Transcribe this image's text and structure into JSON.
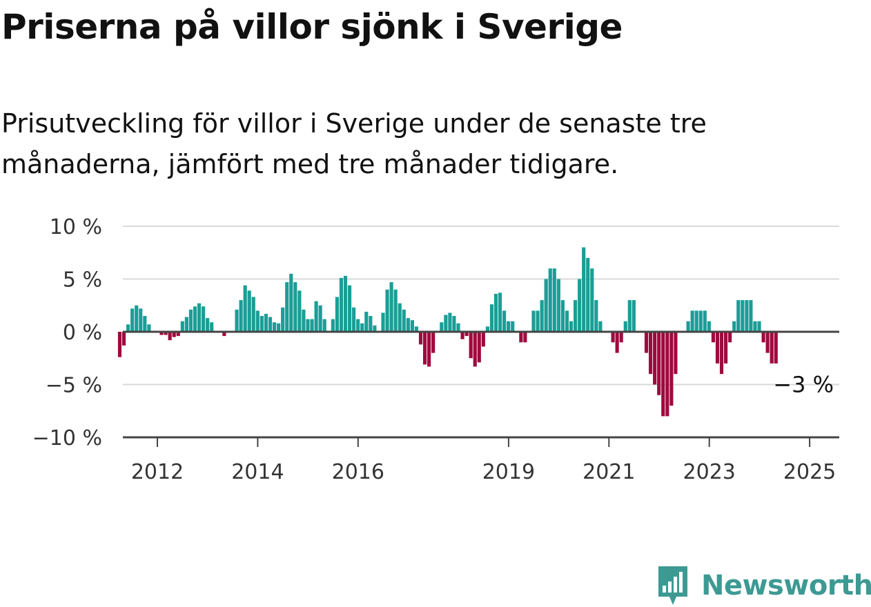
{
  "title": "Priserna på villor sjönk i Sverige",
  "subtitle": {
    "line1": "Prisutveckling för villor i Sverige under de senaste tre",
    "line2": "månaderna, jämfört med tre månader tidigare."
  },
  "brand": {
    "name": "Newsworthy",
    "color": "#3d9a93"
  },
  "chart_data": {
    "type": "bar",
    "ylim": [
      -10,
      10
    ],
    "y_ticks": [
      10,
      5,
      0,
      -5,
      -10
    ],
    "y_tick_labels": [
      "10 %",
      "5 %",
      "0 %",
      "−5 %",
      "−10 %"
    ],
    "x_ticks": [
      2012,
      2014,
      2016,
      2019,
      2021,
      2023,
      2025
    ],
    "x_tick_labels": [
      "2012",
      "2014",
      "2016",
      "2019",
      "2021",
      "2023",
      "2025"
    ],
    "grid": true,
    "colors": {
      "positive": "#1a9e97",
      "negative": "#9e0a3e",
      "grid": "#d9d9d9",
      "axis": "#444444"
    },
    "annotation": {
      "text": "−3 %",
      "value": -3
    },
    "x_start": 2011.25,
    "x_step": 0.0833,
    "values": [
      -2.4,
      -1.3,
      0.7,
      2.2,
      2.5,
      2.2,
      1.5,
      0.7,
      0,
      0,
      -0.3,
      -0.3,
      -0.8,
      -0.5,
      -0.4,
      1.0,
      1.4,
      2.1,
      2.4,
      2.7,
      2.4,
      1.3,
      0.9,
      0,
      0,
      -0.4,
      0,
      0,
      2.1,
      3.0,
      4.4,
      3.9,
      3.3,
      2.0,
      1.5,
      1.7,
      1.4,
      0.9,
      0.8,
      2.3,
      4.7,
      5.5,
      4.7,
      3.9,
      2.1,
      1.2,
      1.2,
      2.9,
      2.5,
      1.2,
      0,
      1.2,
      3.3,
      5.1,
      5.3,
      4.4,
      2.3,
      1.2,
      0.8,
      1.9,
      1.5,
      0.6,
      0,
      1.8,
      4.0,
      4.7,
      4.0,
      2.7,
      2.1,
      1.3,
      1.1,
      0.5,
      -1.2,
      -3.1,
      -3.3,
      -2.0,
      0,
      0.9,
      1.6,
      1.8,
      1.5,
      0.8,
      -0.7,
      -0.4,
      -2.5,
      -3.3,
      -2.9,
      -1.4,
      0.5,
      2.6,
      3.6,
      3.7,
      2.0,
      1.0,
      1.0,
      0,
      -1.0,
      -1.0,
      0,
      2.0,
      2.0,
      3.0,
      5.0,
      6.0,
      6.0,
      5.0,
      3.0,
      2.0,
      1.0,
      3.0,
      5.0,
      8.0,
      7.0,
      6.0,
      3.0,
      1.0,
      0,
      0,
      -1.0,
      -2.0,
      -1.0,
      1.0,
      3.0,
      3.0,
      0,
      0,
      -2.0,
      -4.0,
      -5.0,
      -6.0,
      -8.0,
      -8.0,
      -7.0,
      -4.0,
      0,
      0,
      1.0,
      2.0,
      2.0,
      2.0,
      2.0,
      1.0,
      -1.0,
      -3.0,
      -4.0,
      -3.0,
      -1.0,
      1.0,
      3.0,
      3.0,
      3.0,
      3.0,
      1.0,
      1.0,
      -1.0,
      -2.0,
      -3.0,
      -3.0
    ]
  }
}
